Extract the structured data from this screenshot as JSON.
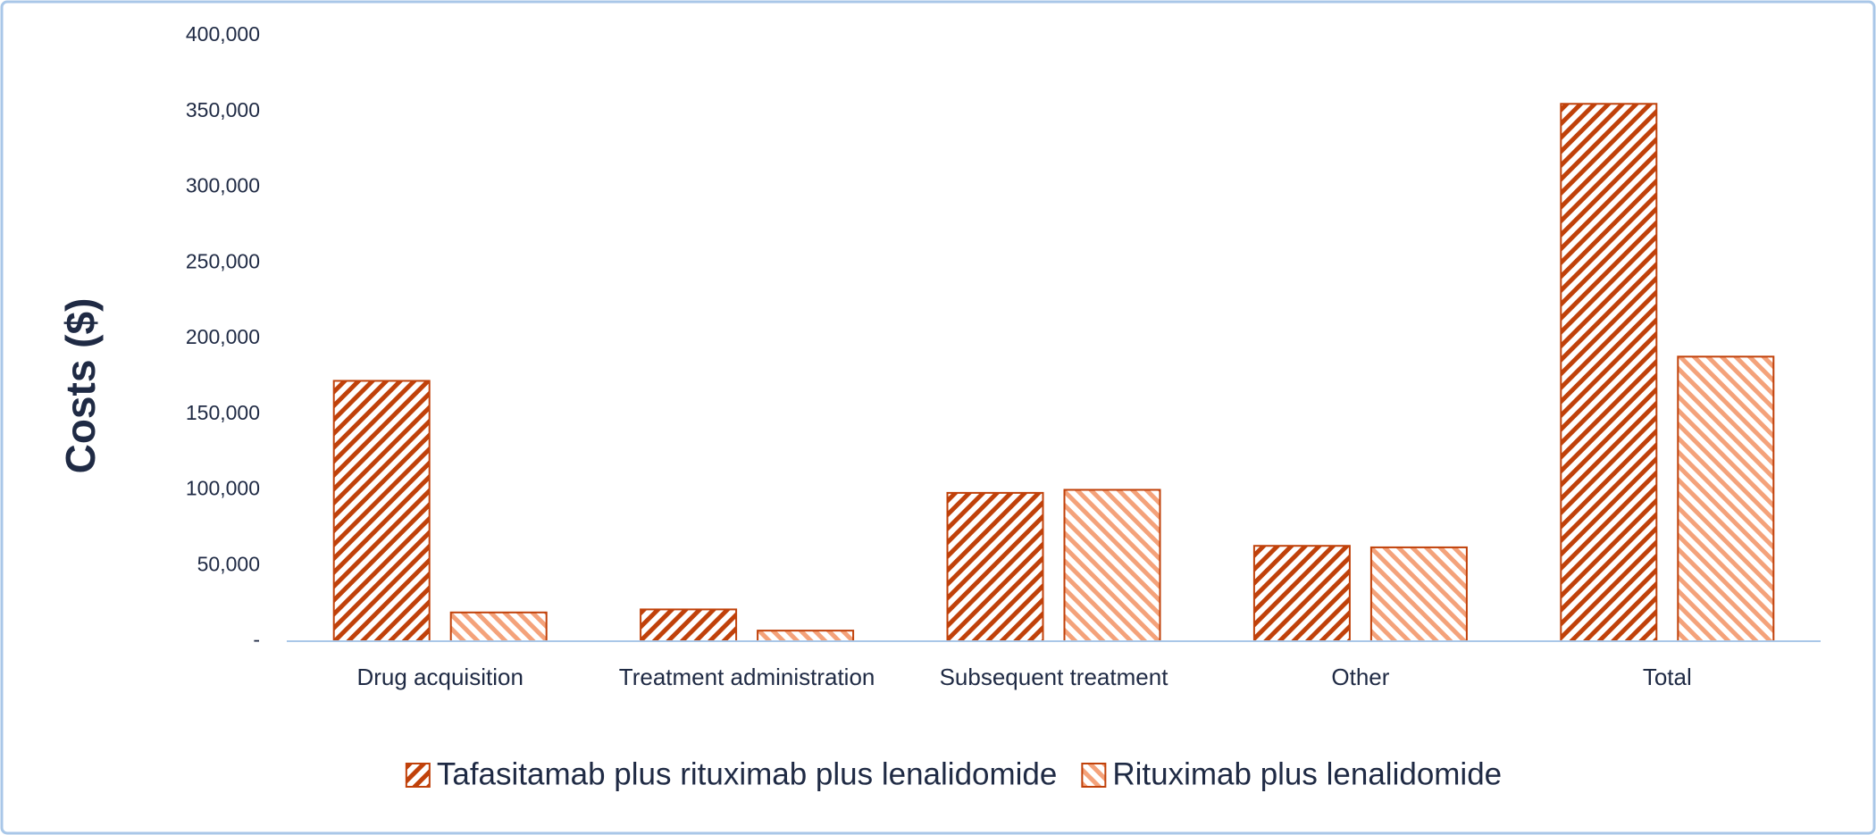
{
  "chart_data": {
    "type": "bar",
    "y_label": "Costs ($)",
    "categories": [
      "Drug acquisition",
      "Treatment administration",
      "Subsequent treatment",
      "Other",
      "Total"
    ],
    "series": [
      {
        "name": "Tafasitamab plus rituximab plus lenalidomide",
        "color": "#c0410a",
        "values": [
          172000,
          21000,
          98000,
          63000,
          355000
        ]
      },
      {
        "name": "Rituximab plus lenalidomide",
        "color": "#f4a27a",
        "values": [
          19000,
          7000,
          100000,
          62000,
          188000
        ]
      }
    ],
    "edgecolor": "#c0410a",
    "ylim": [
      0,
      400000
    ],
    "yticks": [
      {
        "value": 0,
        "label": "-"
      },
      {
        "value": 50000,
        "label": "50,000"
      },
      {
        "value": 100000,
        "label": "100,000"
      },
      {
        "value": 150000,
        "label": "150,000"
      },
      {
        "value": 200000,
        "label": "200,000"
      },
      {
        "value": 250000,
        "label": "250,000"
      },
      {
        "value": 300000,
        "label": "300,000"
      },
      {
        "value": 350000,
        "label": "350,000"
      },
      {
        "value": 400000,
        "label": "400,000"
      }
    ],
    "legend": "bottom"
  }
}
